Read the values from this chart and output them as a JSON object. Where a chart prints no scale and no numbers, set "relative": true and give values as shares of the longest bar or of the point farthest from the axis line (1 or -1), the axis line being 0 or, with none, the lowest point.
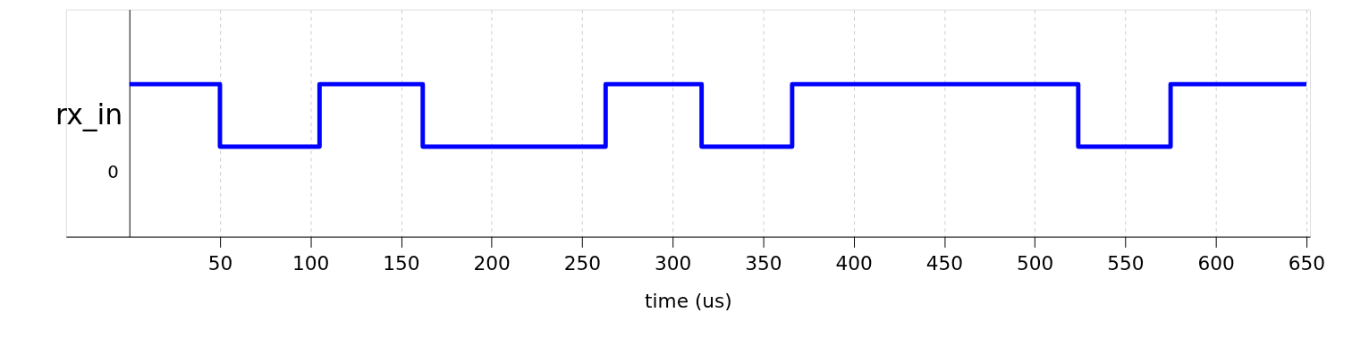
{
  "chart_data": {
    "type": "step",
    "xlabel": "time (us)",
    "ylabel": "rx_in",
    "relative": true,
    "x": [
      0,
      50,
      105,
      162,
      263,
      316,
      366,
      524,
      575,
      650
    ],
    "series": [
      {
        "color": "#0000ff",
        "values": [
          1,
          0.59,
          1,
          0.59,
          1,
          0.59,
          1,
          0.59,
          1,
          1
        ]
      }
    ],
    "xlim": [
      -35,
      652
    ],
    "xticks": [
      50,
      100,
      150,
      200,
      250,
      300,
      350,
      400,
      450,
      500,
      550,
      600,
      650
    ],
    "annotations": [
      "0"
    ],
    "grid": "x",
    "line_style": "solid"
  }
}
